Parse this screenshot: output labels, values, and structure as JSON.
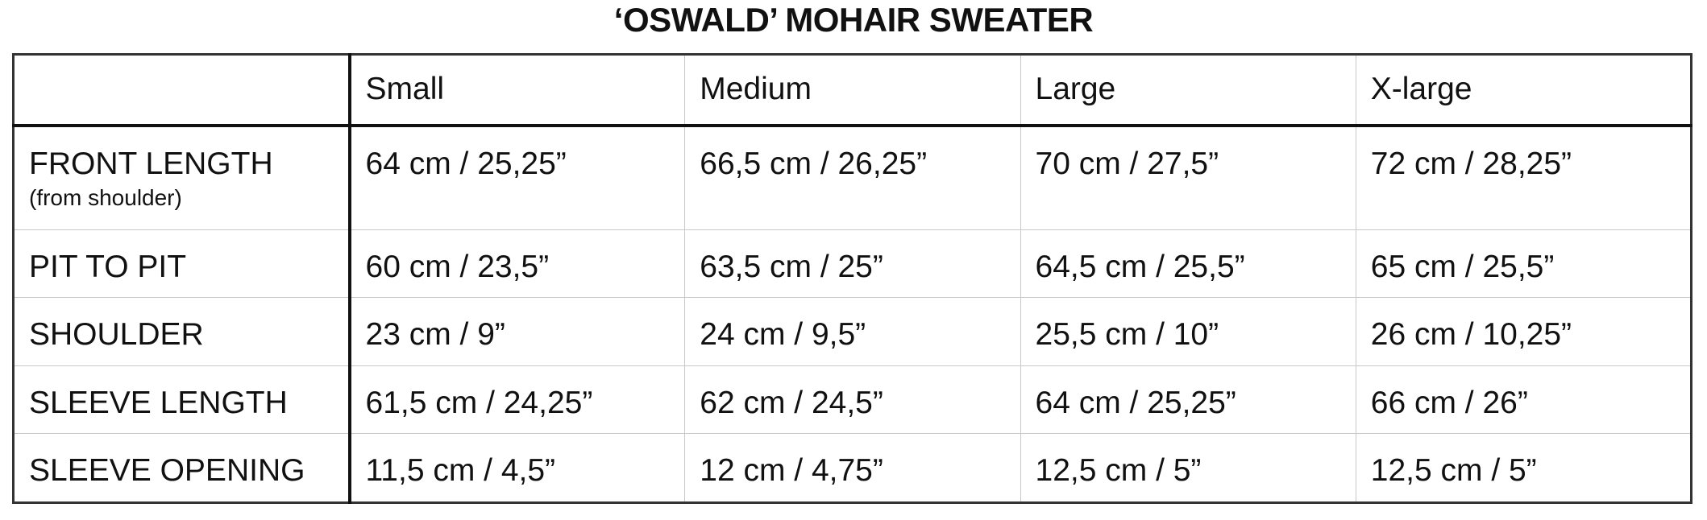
{
  "header": {
    "title": "‘OSWALD’ MOHAIR SWEATER"
  },
  "table": {
    "columns": [
      "Small",
      "Medium",
      "Large",
      "X-large"
    ],
    "rows": [
      {
        "label": "FRONT LENGTH",
        "note": "(from shoulder)",
        "cells": [
          "64 cm / 25,25”",
          "66,5 cm / 26,25”",
          "70 cm / 27,5”",
          "72 cm / 28,25”"
        ]
      },
      {
        "label": "PIT TO PIT",
        "cells": [
          "60 cm / 23,5”",
          "63,5 cm / 25”",
          "64,5 cm / 25,5”",
          "65 cm / 25,5”"
        ]
      },
      {
        "label": "SHOULDER",
        "cells": [
          "23 cm / 9”",
          "24 cm / 9,5”",
          "25,5 cm / 10”",
          "26 cm / 10,25”"
        ]
      },
      {
        "label": "SLEEVE LENGTH",
        "cells": [
          "61,5 cm / 24,25”",
          "62 cm / 24,5”",
          "64 cm / 25,25”",
          "66 cm / 26”"
        ]
      },
      {
        "label": "SLEEVE OPENING",
        "cells": [
          "11,5 cm / 4,5”",
          "12 cm / 4,75”",
          "12,5 cm / 5”",
          "12,5 cm / 5”"
        ]
      }
    ]
  }
}
